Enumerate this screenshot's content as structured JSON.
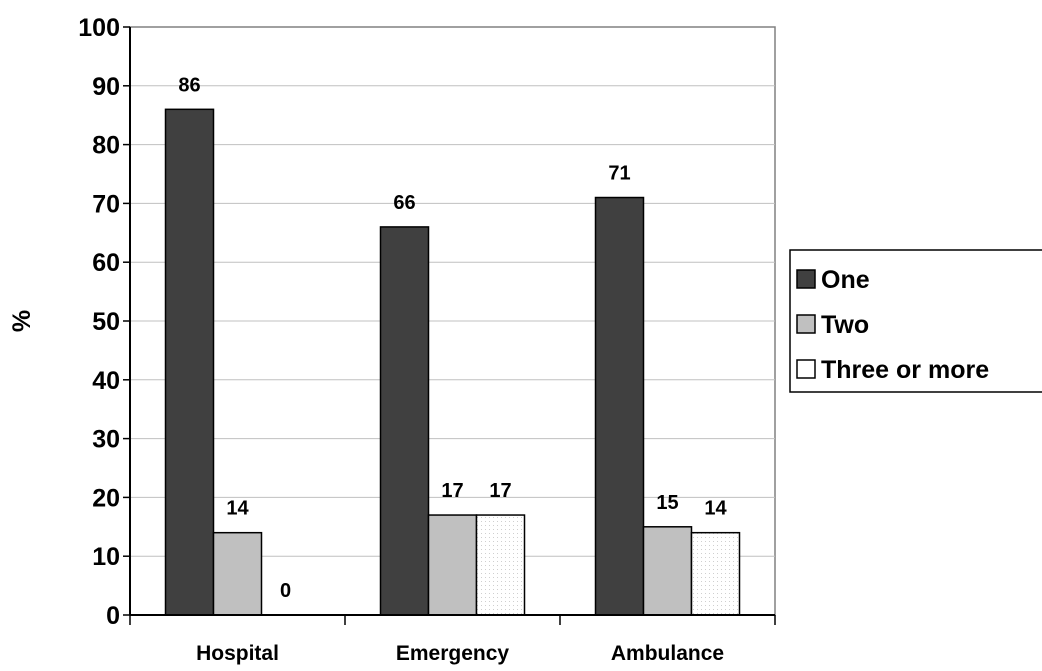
{
  "chart_data": {
    "type": "bar",
    "title": "",
    "xlabel": "",
    "ylabel": "%",
    "ylim": [
      0,
      100
    ],
    "yticks": [
      0,
      10,
      20,
      30,
      40,
      50,
      60,
      70,
      80,
      90,
      100
    ],
    "grid": true,
    "legend_position": "right",
    "categories": [
      "Hospital",
      "Emergency",
      "Ambulance"
    ],
    "series": [
      {
        "name": "One",
        "values": [
          86,
          66,
          71
        ],
        "color": "#404040"
      },
      {
        "name": "Two",
        "values": [
          14,
          17,
          15
        ],
        "color": "#c0c0c0"
      },
      {
        "name": "Three or more",
        "values": [
          0,
          17,
          14
        ],
        "color": "#ffffff"
      }
    ]
  }
}
